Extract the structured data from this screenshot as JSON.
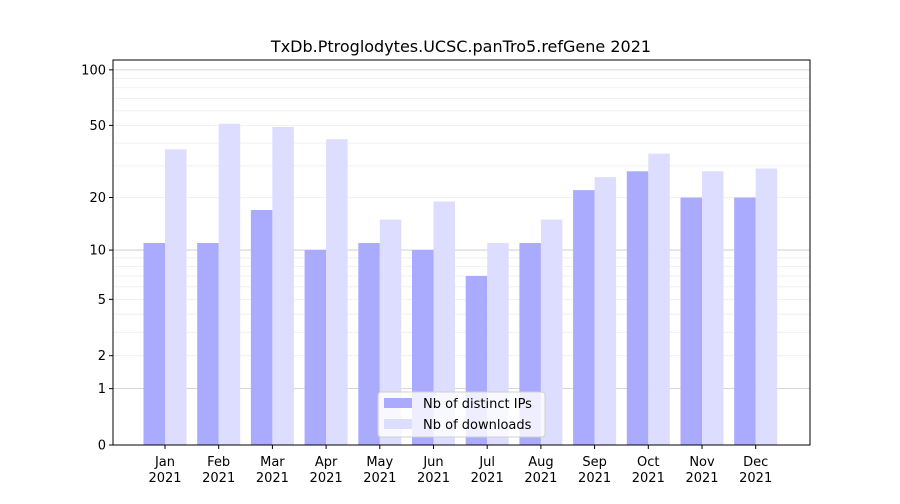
{
  "chart_data": {
    "type": "bar",
    "title": "TxDb.Ptroglodytes.UCSC.panTro5.refGene 2021",
    "xlabel": "",
    "ylabel": "",
    "y_scale": "log10(1 + y)",
    "ylim": [
      0,
      113
    ],
    "yticks": [
      0,
      1,
      2,
      5,
      10,
      20,
      50,
      100
    ],
    "grid": true,
    "legend_position": "bottom-center",
    "categories": [
      "Jan\n2021",
      "Feb\n2021",
      "Mar\n2021",
      "Apr\n2021",
      "May\n2021",
      "Jun\n2021",
      "Jul\n2021",
      "Aug\n2021",
      "Sep\n2021",
      "Oct\n2021",
      "Nov\n2021",
      "Dec\n2021"
    ],
    "series": [
      {
        "name": "Nb of distinct IPs",
        "color": "#aaaaff",
        "values": [
          11,
          11,
          17,
          10,
          11,
          10,
          7,
          11,
          22,
          28,
          20,
          20
        ]
      },
      {
        "name": "Nb of downloads",
        "color": "#ddddff",
        "values": [
          37,
          51,
          49,
          42,
          15,
          19,
          11,
          15,
          26,
          35,
          28,
          29
        ]
      }
    ]
  }
}
